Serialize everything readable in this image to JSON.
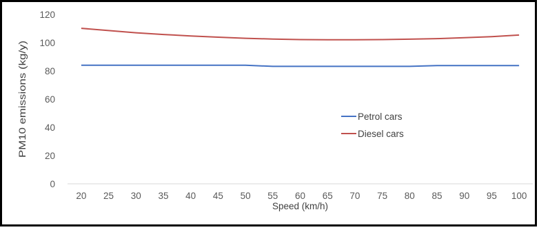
{
  "chart_data": {
    "type": "line",
    "title": "",
    "xlabel": "Speed (km/h)",
    "ylabel": "PM10 emissions (kg/y)",
    "x": [
      20,
      25,
      30,
      35,
      40,
      45,
      50,
      55,
      60,
      65,
      70,
      75,
      80,
      85,
      90,
      95,
      100
    ],
    "ylim": [
      0,
      120
    ],
    "yticks": [
      0,
      20,
      40,
      60,
      80,
      100,
      120
    ],
    "grid": false,
    "legend": "center-right",
    "series": [
      {
        "name": "Petrol cars",
        "color": "#4472C4",
        "values": [
          84,
          84,
          84,
          84,
          84,
          84,
          84,
          83.2,
          83.2,
          83.2,
          83.2,
          83.2,
          83.2,
          83.8,
          83.8,
          83.8,
          83.8
        ]
      },
      {
        "name": "Diesel cars",
        "color": "#C0504D",
        "values": [
          110.2,
          108.6,
          107,
          105.8,
          104.8,
          103.9,
          103.1,
          102.6,
          102.2,
          102.1,
          102.1,
          102.2,
          102.5,
          102.9,
          103.5,
          104.3,
          105.4
        ]
      }
    ]
  }
}
